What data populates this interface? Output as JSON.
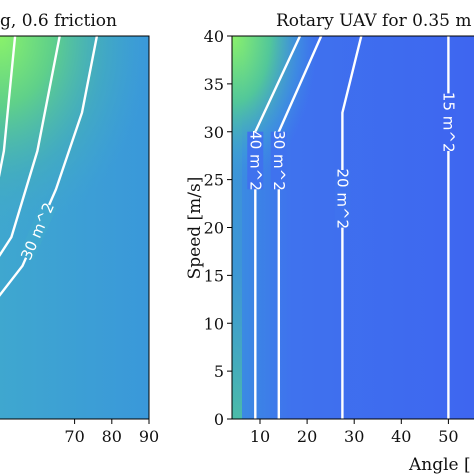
{
  "chart_data": [
    {
      "type": "heatmap",
      "title": "g, 0.6 friction",
      "xlabel": "",
      "ylabel": "",
      "xlim": [
        48,
        90
      ],
      "ylim": [
        0,
        40
      ],
      "x_ticks": [
        70,
        80,
        90
      ],
      "x_tick_labels": [
        "70",
        "80",
        "90"
      ],
      "y_ticks": [],
      "colormap": "viridis-like, green (high) to blue (low)",
      "contours": [
        {
          "label": "",
          "points": [
            [
              54,
              40
            ],
            [
              51,
              28
            ],
            [
              48,
              22
            ]
          ]
        },
        {
          "label": "",
          "points": [
            [
              66,
              40
            ],
            [
              60,
              28
            ],
            [
              53,
              19
            ],
            [
              48,
              16
            ]
          ]
        },
        {
          "label": "30 m^2",
          "points": [
            [
              76,
              40
            ],
            [
              72,
              32
            ],
            [
              65,
              24
            ],
            [
              56,
              16
            ],
            [
              48,
              12
            ]
          ]
        }
      ]
    },
    {
      "type": "heatmap",
      "title": "Rotary UAV for 0.35 m",
      "xlabel": "Angle [",
      "ylabel": "Speed  [m/s]",
      "xlim": [
        5,
        53
      ],
      "ylim": [
        0,
        40
      ],
      "x_ticks": [
        10,
        20,
        30,
        40,
        50
      ],
      "x_tick_labels": [
        "10",
        "20",
        "30",
        "40",
        "50"
      ],
      "y_ticks": [
        0,
        5,
        10,
        15,
        20,
        25,
        30,
        35,
        40
      ],
      "y_tick_labels": [
        "0",
        "5",
        "10",
        "15",
        "20",
        "25",
        "30",
        "35",
        "40"
      ],
      "colormap": "viridis-like, green (high) to blue (low)",
      "contours": [
        {
          "label": "40 m^2",
          "points": [
            [
              9,
              0
            ],
            [
              9,
              30
            ],
            [
              18.5,
              40
            ]
          ]
        },
        {
          "label": "30 m^2",
          "points": [
            [
              14,
              0
            ],
            [
              14,
              30
            ],
            [
              23,
              40
            ]
          ]
        },
        {
          "label": "20 m^2",
          "points": [
            [
              27.5,
              0
            ],
            [
              27.5,
              32
            ],
            [
              31.5,
              40
            ]
          ]
        },
        {
          "label": "15 m^2",
          "points": [
            [
              50,
              0
            ],
            [
              50,
              40
            ]
          ]
        }
      ]
    }
  ],
  "colors": {
    "field_left": "#3d9fd2",
    "field_right": "#3f6bf0",
    "field_hot": "#7af06c",
    "contour": "#ffffff"
  }
}
